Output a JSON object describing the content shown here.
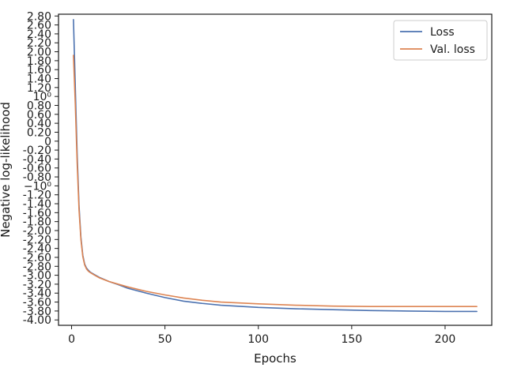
{
  "chart_data": {
    "type": "line",
    "title": "",
    "xlabel": "Epochs",
    "ylabel": "Negative log-likelihood",
    "xlim": [
      -7,
      225
    ],
    "ylim": [
      -4.12,
      2.84
    ],
    "x_ticks": [
      0,
      50,
      100,
      150,
      200
    ],
    "y_ticks": [
      {
        "value": 2.8,
        "label": "2.80"
      },
      {
        "value": 2.6,
        "label": "2.60"
      },
      {
        "value": 2.4,
        "label": "2.40"
      },
      {
        "value": 2.2,
        "label": "2.20"
      },
      {
        "value": 2.0,
        "label": "2.00"
      },
      {
        "value": 1.8,
        "label": "1.80"
      },
      {
        "value": 1.6,
        "label": "1.60"
      },
      {
        "value": 1.4,
        "label": "1.40"
      },
      {
        "value": 1.2,
        "label": "1.20"
      },
      {
        "value": 1.0,
        "label": "10⁰"
      },
      {
        "value": 0.8,
        "label": "0.80"
      },
      {
        "value": 0.6,
        "label": "0.60"
      },
      {
        "value": 0.4,
        "label": "0.40"
      },
      {
        "value": 0.2,
        "label": "0.20"
      },
      {
        "value": 0.0,
        "label": "0"
      },
      {
        "value": -0.2,
        "label": "-0.20"
      },
      {
        "value": -0.4,
        "label": "-0.40"
      },
      {
        "value": -0.6,
        "label": "-0.60"
      },
      {
        "value": -0.8,
        "label": "-0.80"
      },
      {
        "value": -1.0,
        "label": "−10⁰"
      },
      {
        "value": -1.2,
        "label": "-1.20"
      },
      {
        "value": -1.4,
        "label": "-1.40"
      },
      {
        "value": -1.6,
        "label": "-1.60"
      },
      {
        "value": -1.8,
        "label": "-1.80"
      },
      {
        "value": -2.0,
        "label": "-2.00"
      },
      {
        "value": -2.2,
        "label": "-2.20"
      },
      {
        "value": -2.4,
        "label": "-2.40"
      },
      {
        "value": -2.6,
        "label": "-2.60"
      },
      {
        "value": -2.8,
        "label": "-2.80"
      },
      {
        "value": -3.0,
        "label": "-3.00"
      },
      {
        "value": -3.2,
        "label": "-3.20"
      },
      {
        "value": -3.4,
        "label": "-3.40"
      },
      {
        "value": -3.6,
        "label": "-3.60"
      },
      {
        "value": -3.8,
        "label": "-3.80"
      },
      {
        "value": -4.0,
        "label": "-4.00"
      }
    ],
    "grid": false,
    "legend_position": "top-right",
    "series": [
      {
        "name": "Loss",
        "color": "#4c72b0",
        "x": [
          1,
          2,
          3,
          4,
          5,
          6,
          7,
          8,
          9,
          10,
          12,
          15,
          20,
          25,
          30,
          40,
          50,
          60,
          70,
          80,
          100,
          120,
          140,
          160,
          180,
          200,
          217
        ],
        "y": [
          2.72,
          1.2,
          -0.3,
          -1.45,
          -2.15,
          -2.55,
          -2.75,
          -2.84,
          -2.89,
          -2.93,
          -2.98,
          -3.05,
          -3.14,
          -3.21,
          -3.29,
          -3.4,
          -3.5,
          -3.58,
          -3.63,
          -3.67,
          -3.72,
          -3.75,
          -3.77,
          -3.79,
          -3.8,
          -3.81,
          -3.81
        ]
      },
      {
        "name": "Val. loss",
        "color": "#dd8452",
        "x": [
          1,
          2,
          3,
          4,
          5,
          6,
          7,
          8,
          9,
          10,
          12,
          15,
          20,
          25,
          30,
          40,
          50,
          60,
          70,
          80,
          100,
          120,
          140,
          160,
          180,
          200,
          217
        ],
        "y": [
          1.92,
          0.8,
          -0.5,
          -1.55,
          -2.2,
          -2.58,
          -2.77,
          -2.86,
          -2.91,
          -2.94,
          -2.99,
          -3.06,
          -3.14,
          -3.2,
          -3.26,
          -3.36,
          -3.44,
          -3.51,
          -3.56,
          -3.6,
          -3.64,
          -3.67,
          -3.69,
          -3.7,
          -3.7,
          -3.7,
          -3.7
        ]
      }
    ]
  }
}
